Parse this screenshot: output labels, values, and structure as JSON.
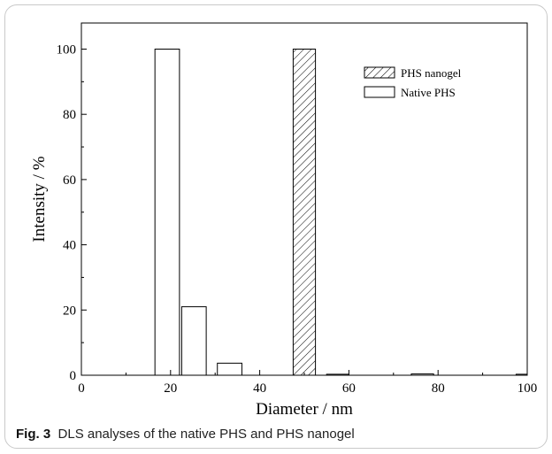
{
  "chart_data": {
    "type": "bar",
    "xlabel": "Diameter / nm",
    "ylabel": "Intensity / %",
    "xlim": [
      0,
      100
    ],
    "ylim": [
      0,
      108
    ],
    "xticks": [
      0,
      20,
      40,
      60,
      80,
      100
    ],
    "yticks": [
      0,
      20,
      40,
      60,
      80,
      100
    ],
    "legend_position": "top-right",
    "series": [
      {
        "name": "PHS nanogel",
        "style": "hatched",
        "bars": [
          {
            "x0": 47.5,
            "x1": 52.5,
            "value": 100
          }
        ]
      },
      {
        "name": "Native PHS",
        "style": "open",
        "bars": [
          {
            "x0": 16.5,
            "x1": 22,
            "value": 100
          },
          {
            "x0": 22.5,
            "x1": 28,
            "value": 21
          },
          {
            "x0": 30.5,
            "x1": 36,
            "value": 3.7
          },
          {
            "x0": 55,
            "x1": 60,
            "value": 0.3
          },
          {
            "x0": 74,
            "x1": 79,
            "value": 0.4
          },
          {
            "x0": 97.5,
            "x1": 100,
            "value": 0.3
          }
        ]
      }
    ]
  },
  "caption": {
    "label": "Fig. 3",
    "text": "DLS analyses of the native PHS and PHS nanogel"
  }
}
